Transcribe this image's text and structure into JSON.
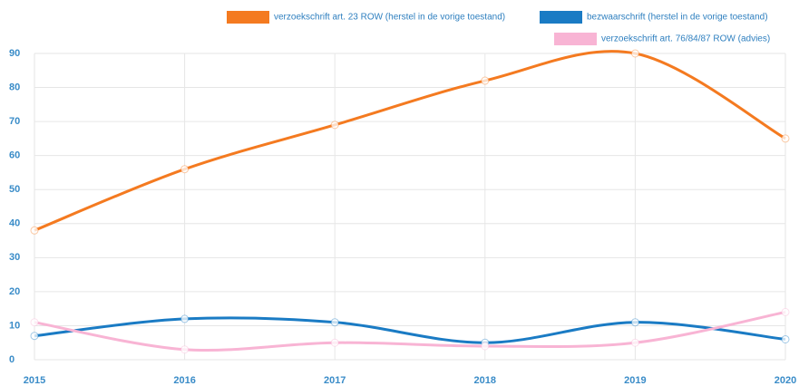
{
  "chart_data": {
    "type": "line",
    "categories": [
      "2015",
      "2016",
      "2017",
      "2018",
      "2019",
      "2020"
    ],
    "series": [
      {
        "name": "verzoekschrift art. 23 ROW (herstel in de vorige toestand)",
        "color": "#f47a20",
        "values": [
          38,
          56,
          69,
          82,
          90,
          65
        ]
      },
      {
        "name": "bezwaarschrift (herstel in de vorige toestand)",
        "color": "#1a7bc4",
        "values": [
          7,
          12,
          11,
          5,
          11,
          6
        ]
      },
      {
        "name": "verzoekschrift art. 76/84/87 ROW (advies)",
        "color": "#f8b4d4",
        "values": [
          11,
          3,
          5,
          4,
          5,
          14
        ]
      }
    ],
    "ylim": [
      0,
      90
    ],
    "yticks": [
      0,
      10,
      20,
      30,
      40,
      50,
      60,
      70,
      80,
      90
    ],
    "grid": true,
    "legend": "top-right"
  }
}
